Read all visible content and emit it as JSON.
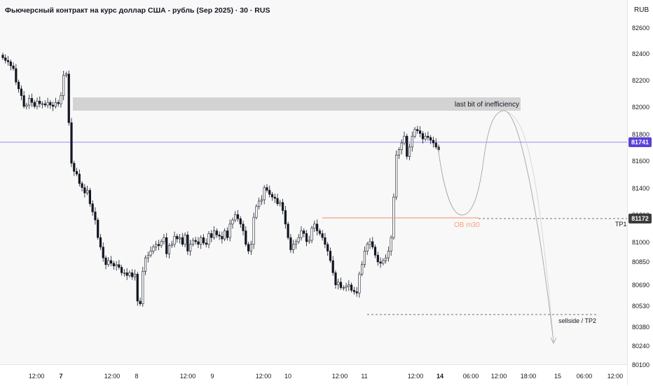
{
  "title": "Фьючерсный контракт на курс доллар США - рубль (Sep 2025) · 30 · RUS",
  "currency": "RUB",
  "colors": {
    "background": "#f8f8f8",
    "candle": "#131722",
    "price_line": "#7b61ff",
    "price_tag": "#5b3fd6",
    "ob_zone": "#f6a27e",
    "gray_zone": "#d3d3d3",
    "tp1_tag": "#3c3c3c"
  },
  "price_axis": {
    "ticks": [
      "82600",
      "82400",
      "82200",
      "82000",
      "81800",
      "81600",
      "81400",
      "81200",
      "81000",
      "80850",
      "80690",
      "80530",
      "80380",
      "80240",
      "80100"
    ],
    "current_price": "81741",
    "tp1_price": "81172"
  },
  "time_axis": {
    "labels": [
      {
        "text": "12:00",
        "bold": false
      },
      {
        "text": "7",
        "bold": true
      },
      {
        "text": "12:00",
        "bold": false
      },
      {
        "text": "8",
        "bold": false
      },
      {
        "text": "12:00",
        "bold": false
      },
      {
        "text": "9",
        "bold": false
      },
      {
        "text": "12:00",
        "bold": false
      },
      {
        "text": "10",
        "bold": false
      },
      {
        "text": "12:00",
        "bold": false
      },
      {
        "text": "11",
        "bold": false
      },
      {
        "text": "12:00",
        "bold": false
      },
      {
        "text": "14",
        "bold": true
      },
      {
        "text": "06:00",
        "bold": false
      },
      {
        "text": "12:00",
        "bold": false
      },
      {
        "text": "18:00",
        "bold": false
      },
      {
        "text": "15",
        "bold": false
      },
      {
        "text": "06:00",
        "bold": false
      },
      {
        "text": "12:00",
        "bold": false
      }
    ]
  },
  "annotations": {
    "inefficiency": "last bit of inefficiency",
    "ob": "OB m30",
    "tp1": "TP1",
    "sellside": "sellside / TP2"
  },
  "chart_data": {
    "type": "candlestick",
    "y_range": [
      80100,
      82650
    ],
    "zones": {
      "inefficiency": [
        81970,
        82080
      ],
      "order_block": [
        81165,
        81190
      ]
    },
    "levels": {
      "current": 81741,
      "tp1": 81172,
      "sellside": 80520
    },
    "close_path": [
      82380,
      82360,
      82350,
      82320,
      82300,
      82200,
      82150,
      82100,
      82020,
      82030,
      82080,
      82050,
      82020,
      82060,
      82040,
      82040,
      82030,
      82050,
      82030,
      82020,
      82050,
      82040,
      82100,
      82250,
      82260,
      81900,
      81600,
      81540,
      81520,
      81450,
      81420,
      81380,
      81400,
      81300,
      81240,
      81180,
      81050,
      80980,
      80900,
      80850,
      80880,
      80860,
      80840,
      80850,
      80830,
      80790,
      80790,
      80770,
      80790,
      80760,
      80780,
      80580,
      80560,
      80800,
      80900,
      80920,
      80950,
      80980,
      81000,
      80990,
      81020,
      81050,
      80930,
      80990,
      81000,
      81060,
      81040,
      81050,
      81000,
      81070,
      80950,
      81000,
      81030,
      81020,
      81000,
      81050,
      81010,
      81000,
      81080,
      81050,
      81100,
      81070,
      81060,
      81040,
      81100,
      81050,
      81150,
      81180,
      81220,
      81190,
      81150,
      81100,
      81000,
      80950,
      81000,
      81200,
      81280,
      81320,
      81330,
      81420,
      81400,
      81370,
      81350,
      81340,
      81300,
      81310,
      81250,
      81150,
      81050,
      80960,
      81000,
      81020,
      81050,
      81100,
      81080,
      81020,
      81030,
      81120,
      81150,
      81100,
      81080,
      81050,
      81000,
      80950,
      80880,
      80790,
      80700,
      80720,
      80680,
      80680,
      80690,
      80700,
      80660,
      80650,
      80640,
      80780,
      80850,
      80950,
      81000,
      81020,
      80980,
      80920,
      80870,
      80860,
      80880,
      80900,
      80950,
      81050,
      81350,
      81660,
      81700,
      81750,
      81800,
      81650,
      81720,
      81800,
      81850,
      81840,
      81820,
      81780,
      81800,
      81790,
      81770,
      81750,
      81720,
      81700
    ]
  }
}
